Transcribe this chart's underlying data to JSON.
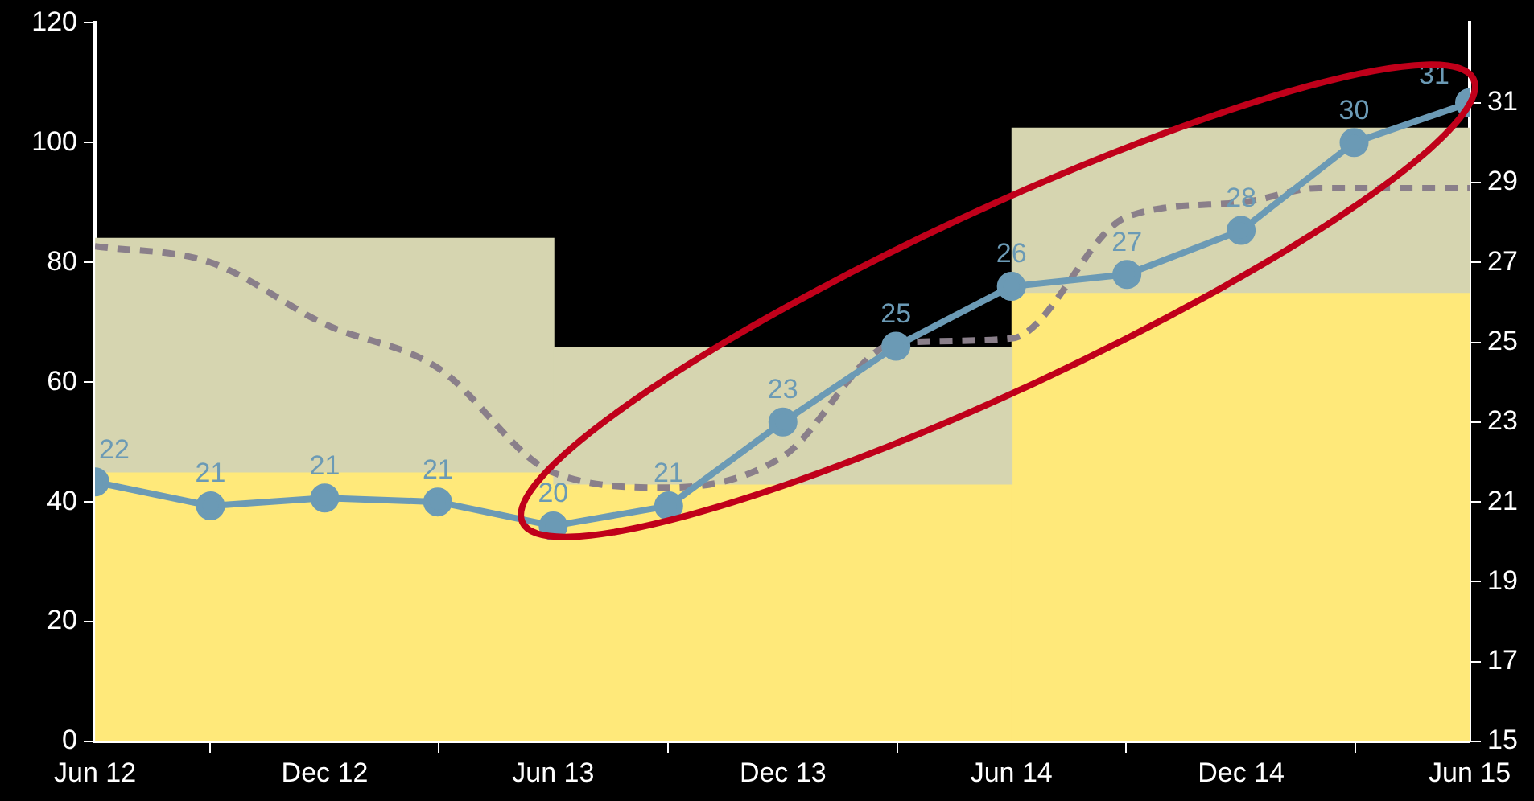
{
  "chart_data": {
    "type": "line",
    "series": [
      {
        "type": "bar",
        "color": "#ffe97a",
        "x": [
          "2012-12",
          "2013-12",
          "2014-12"
        ],
        "values": [
          45,
          43,
          75
        ]
      },
      {
        "type": "bar",
        "color": "#d6d5b0",
        "x": [
          "2012-12",
          "2013-12",
          "2014-12"
        ],
        "values": [
          39,
          22.7,
          27.4
        ]
      },
      {
        "type": "line",
        "color": "#8a7f8a",
        "line_style": "dashed",
        "marker": "none",
        "x": [
          "2012-06",
          "2012-09",
          "2012-12",
          "2013-03",
          "2013-06",
          "2013-09",
          "2013-12",
          "2014-03",
          "2014-06",
          "2014-09",
          "2014-12",
          "2015-02",
          "2015-06"
        ],
        "values": [
          82.7,
          80,
          69.7,
          62.4,
          44.9,
          42.4,
          47.6,
          66.5,
          67.3,
          87.6,
          90,
          92.4,
          92.4
        ]
      },
      {
        "type": "line",
        "color": "#6b9ab5",
        "axis": "y2",
        "marker": "circle",
        "x": [
          "2012-06",
          "2012-09",
          "2012-12",
          "2013-03",
          "2013-06",
          "2013-09",
          "2013-12",
          "2014-03",
          "2014-06",
          "2014-09",
          "2014-12",
          "2015-03",
          "2015-06"
        ],
        "values": [
          21.5,
          20.9,
          21.1,
          21.0,
          20.4,
          20.9,
          23.0,
          24.9,
          26.4,
          26.7,
          27.8,
          30.0,
          31.0
        ],
        "value_labels": [
          "22",
          "21",
          "21",
          "21",
          "20",
          "21",
          "23",
          "25",
          "26",
          "27",
          "28",
          "30",
          "31"
        ]
      }
    ],
    "xlim": [
      "2012-06",
      "2015-06"
    ],
    "xticks": [
      {
        "value": "2012-06",
        "label": "Jun 12"
      },
      {
        "value": "2012-12",
        "label": "Dec 12"
      },
      {
        "value": "2013-06",
        "label": "Jun 13"
      },
      {
        "value": "2013-12",
        "label": "Dec 13"
      },
      {
        "value": "2014-06",
        "label": "Jun 14"
      },
      {
        "value": "2014-12",
        "label": "Dec 14"
      },
      {
        "value": "2015-06",
        "label": "Jun 15"
      }
    ],
    "ylim": [
      0,
      120
    ],
    "yticks": [
      0,
      20,
      40,
      60,
      80,
      100,
      120
    ],
    "y2lim": [
      15,
      33
    ],
    "y2ticks": [
      15,
      17,
      19,
      21,
      23,
      25,
      27,
      29,
      31
    ],
    "stacked": true,
    "grid": false,
    "legend": false
  }
}
